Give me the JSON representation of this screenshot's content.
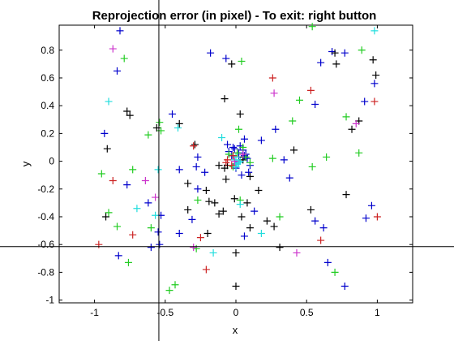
{
  "chart_data": {
    "type": "scatter",
    "title": "Reprojection error (in pixel) - To exit: right button",
    "xlabel": "x",
    "ylabel": "y",
    "xlim": [
      -1.25,
      1.25
    ],
    "ylim": [
      -1.02,
      0.98
    ],
    "xticks": [
      -1,
      -0.5,
      0,
      0.5,
      1
    ],
    "xtick_labels": [
      "-1",
      "-0.5",
      "0",
      "0.5",
      "1"
    ],
    "yticks": [
      -1,
      -0.8,
      -0.6,
      -0.4,
      -0.2,
      0,
      0.2,
      0.4,
      0.6,
      0.8
    ],
    "ytick_labels": [
      "-1",
      "-0.8",
      "-0.6",
      "-0.4",
      "-0.2",
      "0",
      "0.2",
      "0.4",
      "0.6",
      "0.8"
    ],
    "marker": "plus",
    "grid": false,
    "crosshair": {
      "x": -0.545,
      "y": -0.615
    },
    "colors": {
      "blue": "#0000cc",
      "black": "#000000",
      "green": "#22cc22",
      "cyan": "#22dddd",
      "red": "#cc2222",
      "magenta": "#cc33cc"
    },
    "series": [
      {
        "color": "blue",
        "x": [
          -0.82,
          -0.84,
          -0.93,
          -0.77,
          -0.83,
          -0.53,
          -0.4,
          -0.55,
          -0.18,
          -0.27,
          -0.28,
          0.06,
          0.13,
          0.18,
          0.28,
          0.38,
          0.56,
          0.62,
          0.68,
          0.6,
          0.77,
          0.91,
          0.98,
          0.96,
          0.92,
          0.77,
          0.56,
          0.65,
          0.34,
          0.06,
          -0.07,
          -0.22,
          -0.27,
          -0.31,
          -0.45,
          -0.62,
          -0.6,
          -0.4,
          -0.54,
          0.02,
          -0.02,
          0.05,
          0.08,
          0.0,
          -0.03,
          0.03,
          0.07,
          0.1,
          -0.05,
          0.02,
          0.0,
          0.04,
          -0.01,
          0.06,
          0.09,
          -0.06
        ],
        "y": [
          0.94,
          0.65,
          0.2,
          -0.17,
          -0.68,
          -0.39,
          -0.52,
          -0.51,
          0.78,
          0.03,
          -0.04,
          -0.54,
          -0.36,
          0.15,
          0.23,
          -0.12,
          -0.43,
          -0.48,
          0.79,
          0.71,
          0.78,
          0.43,
          0.56,
          -0.32,
          -0.41,
          -0.9,
          0.41,
          -0.73,
          0.01,
          0.16,
          0.74,
          -0.08,
          -0.2,
          -0.42,
          0.34,
          -0.3,
          -0.62,
          -0.06,
          -0.6,
          0.06,
          0.1,
          0.08,
          0.02,
          -0.02,
          0.04,
          0.11,
          0.05,
          -0.03,
          0.07,
          0.0,
          -0.05,
          -0.1,
          0.09,
          0.04,
          -0.08,
          0.12
        ]
      },
      {
        "color": "black",
        "x": [
          -0.91,
          -0.92,
          -0.75,
          -0.77,
          -0.56,
          -0.4,
          -0.29,
          -0.19,
          -0.09,
          -0.12,
          -0.08,
          0.03,
          0.16,
          0.41,
          0.53,
          0.71,
          0.7,
          0.78,
          0.97,
          0.99,
          -0.06,
          0.0,
          -0.2,
          -0.34,
          -0.21,
          -0.15,
          -0.34,
          0.1,
          0.22,
          0.27,
          0.31,
          -0.03,
          -0.07,
          0.0,
          0.04,
          0.1,
          0.05,
          -0.12,
          -0.01,
          0.08,
          0.82,
          0.87,
          0.05,
          -0.08
        ],
        "y": [
          0.09,
          -0.4,
          0.33,
          0.36,
          0.24,
          0.27,
          0.12,
          -0.29,
          -0.36,
          -0.38,
          0.45,
          0.34,
          -0.21,
          0.08,
          -0.35,
          0.7,
          0.78,
          -0.24,
          0.73,
          0.62,
          -0.03,
          -0.66,
          -0.52,
          -0.16,
          -0.21,
          -0.3,
          -0.35,
          -0.48,
          -0.43,
          -0.47,
          -0.62,
          0.7,
          -0.13,
          -0.9,
          -0.4,
          -0.11,
          0.03,
          -0.03,
          -0.27,
          -0.3,
          0.23,
          0.29,
          0.01,
          -0.05
        ]
      },
      {
        "color": "green",
        "x": [
          -0.79,
          -0.95,
          -0.84,
          -0.73,
          -0.6,
          -0.53,
          -0.27,
          -0.54,
          -0.28,
          0.02,
          0.04,
          0.03,
          0.26,
          0.31,
          0.4,
          0.45,
          0.54,
          0.7,
          0.78,
          0.89,
          0.87,
          0.64,
          -0.76,
          -0.9,
          -0.62,
          -0.47,
          -0.43,
          0.54,
          0.01,
          0.05,
          -0.02,
          0.07,
          0.1,
          -0.05
        ],
        "y": [
          0.74,
          -0.09,
          -0.47,
          -0.06,
          -0.48,
          0.22,
          -0.28,
          0.28,
          -0.63,
          0.23,
          0.72,
          -0.28,
          0.02,
          -0.4,
          0.29,
          0.44,
          -0.04,
          -0.8,
          0.32,
          0.8,
          0.06,
          0.03,
          -0.73,
          -0.37,
          0.19,
          -0.93,
          -0.89,
          0.97,
          0.06,
          0.1,
          -0.04,
          0.03,
          -0.01,
          0.05
        ]
      },
      {
        "color": "cyan",
        "x": [
          -0.9,
          -0.7,
          -0.57,
          -0.41,
          -0.1,
          -0.16,
          0.18,
          0.03,
          0.98,
          -0.55,
          0.01,
          0.0,
          -0.01,
          0.02,
          0.0,
          0.03
        ],
        "y": [
          0.43,
          -0.34,
          -0.39,
          0.24,
          0.17,
          -0.66,
          -0.52,
          -0.31,
          0.94,
          -0.06,
          -0.02,
          -0.04,
          0.01,
          -0.01,
          0.03,
          0.0
        ]
      },
      {
        "color": "red",
        "x": [
          -0.97,
          -0.87,
          -0.73,
          -0.3,
          -0.21,
          -0.25,
          0.26,
          0.53,
          0.6,
          0.98,
          1.0,
          -0.06,
          -0.02,
          -0.07,
          -0.03
        ],
        "y": [
          -0.6,
          -0.14,
          -0.53,
          0.11,
          -0.78,
          -0.55,
          0.6,
          0.51,
          -0.57,
          0.43,
          -0.4,
          0.01,
          0.04,
          -0.01,
          -0.03
        ]
      },
      {
        "color": "magenta",
        "x": [
          -0.87,
          -0.64,
          -0.57,
          -0.3,
          0.27,
          0.43,
          0.85,
          -0.01,
          0.05
        ],
        "y": [
          0.81,
          -0.14,
          -0.26,
          -0.62,
          0.49,
          -0.66,
          0.27,
          0.0,
          0.05
        ]
      }
    ]
  }
}
